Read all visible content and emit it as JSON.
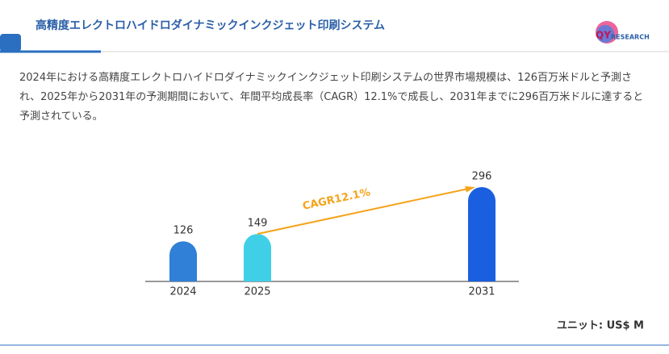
{
  "header": {
    "title": "高精度エレクトロハイドロダイナミックインクジェット印刷システム",
    "logo": {
      "main": "QY",
      "sub": "RESEARCH"
    }
  },
  "description": "2024年における高精度エレクトロハイドロダイナミックインクジェット印刷システムの世界市場規模は、126百万米ドルと予測され、2025年から2031年の予測期間において、年間平均成長率（CAGR）12.1%で成長し、2031年までに296百万米ドルに達すると予測されている。",
  "chart_data": {
    "type": "bar",
    "categories": [
      "2024",
      "2025",
      "2031"
    ],
    "values": [
      126,
      149,
      296
    ],
    "colors": [
      "#2f80d6",
      "#3fd0e8",
      "#1a5fe0"
    ],
    "annotation": "CAGR12.1%",
    "annotation_color": "#f5a31a",
    "unit": "ユニット: US$ M"
  }
}
